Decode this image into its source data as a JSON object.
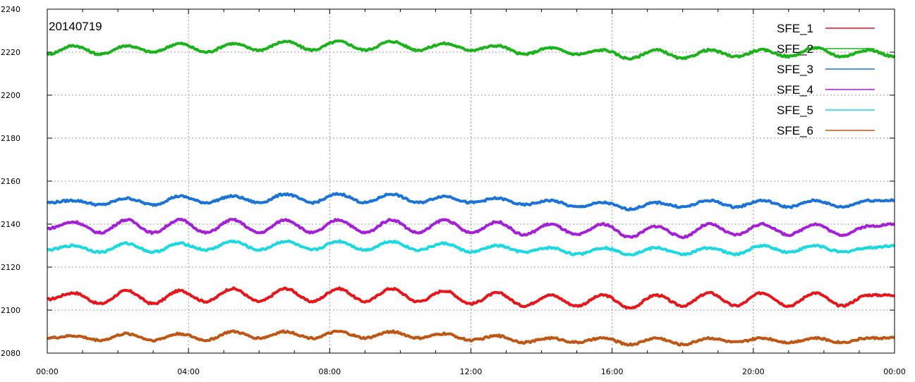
{
  "chart_data": {
    "type": "line",
    "title": "20140719",
    "xlabel": "",
    "ylabel": "",
    "x_ticks": [
      "00:00",
      "04:00",
      "08:00",
      "12:00",
      "16:00",
      "20:00",
      "00:00"
    ],
    "x_range_hours": [
      0,
      24
    ],
    "ylim": [
      2080,
      2240
    ],
    "y_ticks": [
      2080,
      2100,
      2120,
      2140,
      2160,
      2180,
      2200,
      2220,
      2240
    ],
    "grid": true,
    "legend_position": "top-right",
    "series": [
      {
        "name": "SFE_1",
        "color": "#e8151b",
        "x": [
          0,
          0.75,
          1.5,
          2.25,
          3,
          3.75,
          4.5,
          5.25,
          6,
          6.75,
          7.5,
          8.25,
          9,
          9.75,
          10.5,
          11.25,
          12,
          12.75,
          13.5,
          14.25,
          15,
          15.75,
          16.5,
          17.25,
          18,
          18.75,
          19.5,
          20.25,
          21,
          21.75,
          22.5,
          23.25,
          24
        ],
        "y": [
          2105,
          2108,
          2103,
          2109,
          2103,
          2109,
          2104,
          2110,
          2104,
          2110,
          2104,
          2110,
          2104,
          2110,
          2104,
          2109,
          2103,
          2108,
          2102,
          2107,
          2102,
          2107,
          2101,
          2107,
          2102,
          2108,
          2102,
          2108,
          2102,
          2108,
          2102,
          2107,
          2107
        ]
      },
      {
        "name": "SFE_2",
        "color": "#1ab31a",
        "x": [
          0,
          0.75,
          1.5,
          2.25,
          3,
          3.75,
          4.5,
          5.25,
          6,
          6.75,
          7.5,
          8.25,
          9,
          9.75,
          10.5,
          11.25,
          12,
          12.75,
          13.5,
          14.25,
          15,
          15.75,
          16.5,
          17.25,
          18,
          18.75,
          19.5,
          20.25,
          21,
          21.75,
          22.5,
          23.25,
          24
        ],
        "y": [
          2219,
          2223,
          2219,
          2223,
          2220,
          2224,
          2220,
          2224,
          2221,
          2225,
          2221,
          2225,
          2221,
          2225,
          2221,
          2224,
          2221,
          2223,
          2219,
          2222,
          2219,
          2221,
          2217,
          2221,
          2217,
          2221,
          2218,
          2221,
          2218,
          2222,
          2218,
          2221,
          2218
        ]
      },
      {
        "name": "SFE_3",
        "color": "#1a73d9",
        "x": [
          0,
          0.75,
          1.5,
          2.25,
          3,
          3.75,
          4.5,
          5.25,
          6,
          6.75,
          7.5,
          8.25,
          9,
          9.75,
          10.5,
          11.25,
          12,
          12.75,
          13.5,
          14.25,
          15,
          15.75,
          16.5,
          17.25,
          18,
          18.75,
          19.5,
          20.25,
          21,
          21.75,
          22.5,
          23.25,
          24
        ],
        "y": [
          2150,
          2151,
          2149,
          2152,
          2149,
          2153,
          2150,
          2153,
          2150,
          2154,
          2150,
          2154,
          2150,
          2154,
          2150,
          2153,
          2150,
          2152,
          2149,
          2151,
          2148,
          2150,
          2147,
          2150,
          2148,
          2151,
          2148,
          2151,
          2148,
          2151,
          2148,
          2151,
          2151
        ]
      },
      {
        "name": "SFE_4",
        "color": "#a51fd9",
        "x": [
          0,
          0.75,
          1.5,
          2.25,
          3,
          3.75,
          4.5,
          5.25,
          6,
          6.75,
          7.5,
          8.25,
          9,
          9.75,
          10.5,
          11.25,
          12,
          12.75,
          13.5,
          14.25,
          15,
          15.75,
          16.5,
          17.25,
          18,
          18.75,
          19.5,
          20.25,
          21,
          21.75,
          22.5,
          23.25,
          24
        ],
        "y": [
          2138,
          2141,
          2136,
          2142,
          2136,
          2142,
          2136,
          2142,
          2136,
          2142,
          2136,
          2142,
          2136,
          2142,
          2136,
          2142,
          2136,
          2141,
          2135,
          2140,
          2135,
          2140,
          2134,
          2139,
          2134,
          2140,
          2135,
          2140,
          2135,
          2140,
          2135,
          2139,
          2140
        ]
      },
      {
        "name": "SFE_5",
        "color": "#1ad9e0",
        "x": [
          0,
          0.75,
          1.5,
          2.25,
          3,
          3.75,
          4.5,
          5.25,
          6,
          6.75,
          7.5,
          8.25,
          9,
          9.75,
          10.5,
          11.25,
          12,
          12.75,
          13.5,
          14.25,
          15,
          15.75,
          16.5,
          17.25,
          18,
          18.75,
          19.5,
          20.25,
          21,
          21.75,
          22.5,
          23.25,
          24
        ],
        "y": [
          2128,
          2130,
          2127,
          2131,
          2127,
          2131,
          2128,
          2132,
          2128,
          2132,
          2128,
          2132,
          2128,
          2132,
          2128,
          2131,
          2127,
          2130,
          2127,
          2129,
          2126,
          2129,
          2126,
          2129,
          2126,
          2129,
          2126,
          2130,
          2127,
          2130,
          2127,
          2129,
          2130
        ]
      },
      {
        "name": "SFE_6",
        "color": "#c05614",
        "x": [
          0,
          0.75,
          1.5,
          2.25,
          3,
          3.75,
          4.5,
          5.25,
          6,
          6.75,
          7.5,
          8.25,
          9,
          9.75,
          10.5,
          11.25,
          12,
          12.75,
          13.5,
          14.25,
          15,
          15.75,
          16.5,
          17.25,
          18,
          18.75,
          19.5,
          20.25,
          21,
          21.75,
          22.5,
          23.25,
          24
        ],
        "y": [
          2087,
          2088,
          2086,
          2089,
          2086,
          2089,
          2086,
          2090,
          2087,
          2090,
          2087,
          2090,
          2087,
          2090,
          2087,
          2089,
          2086,
          2088,
          2085,
          2087,
          2085,
          2087,
          2084,
          2087,
          2084,
          2087,
          2085,
          2087,
          2085,
          2087,
          2085,
          2087,
          2087
        ]
      }
    ]
  }
}
